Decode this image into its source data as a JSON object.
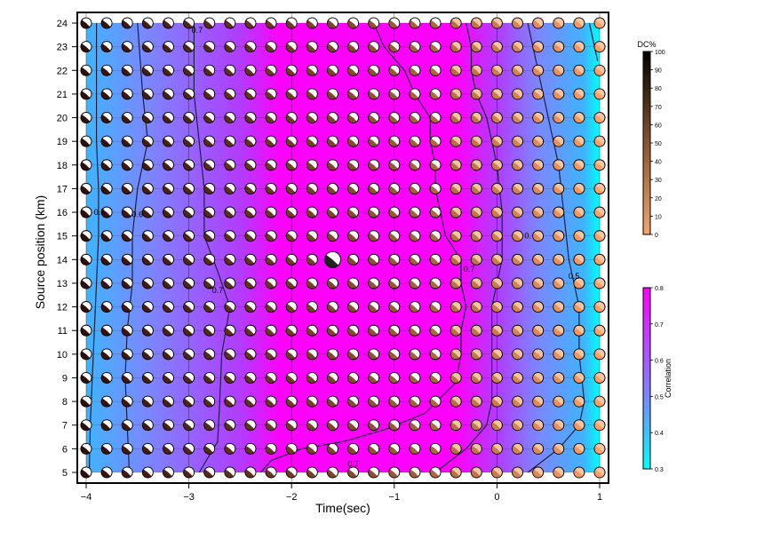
{
  "chart_data": {
    "type": "heatmap",
    "xlabel": "Time(sec)",
    "ylabel": "Source position (km)",
    "xlim": [
      -4,
      1
    ],
    "ylim": [
      5,
      24
    ],
    "x_ticks": [
      "−4",
      "−3",
      "−2",
      "−1",
      "0",
      "1"
    ],
    "y_ticks": [
      "5",
      "6",
      "7",
      "8",
      "9",
      "10",
      "11",
      "12",
      "13",
      "14",
      "15",
      "16",
      "17",
      "18",
      "19",
      "20",
      "21",
      "22",
      "23",
      "24"
    ],
    "grid": true,
    "time_step": 0.2,
    "position_step": 1,
    "x": [
      -4.0,
      -3.8,
      -3.6,
      -3.4,
      -3.2,
      -3.0,
      -2.8,
      -2.6,
      -2.4,
      -2.2,
      -2.0,
      -1.8,
      -1.6,
      -1.4,
      -1.2,
      -1.0,
      -0.8,
      -0.6,
      -0.4,
      -0.2,
      0.0,
      0.2,
      0.4,
      0.6,
      0.8,
      1.0
    ],
    "y": [
      5,
      6,
      7,
      8,
      9,
      10,
      11,
      12,
      13,
      14,
      15,
      16,
      17,
      18,
      19,
      20,
      21,
      22,
      23,
      24
    ],
    "contours": [
      {
        "level": "0.5",
        "points": [
          [
            -3.97,
            5
          ],
          [
            -3.96,
            7
          ],
          [
            -3.94,
            9
          ],
          [
            -3.92,
            11
          ],
          [
            -3.9,
            13
          ],
          [
            -3.88,
            15
          ],
          [
            -3.88,
            17
          ],
          [
            -3.9,
            19
          ],
          [
            -3.9,
            21
          ],
          [
            -3.9,
            24
          ]
        ]
      },
      {
        "level": "0.6",
        "points": [
          [
            -3.58,
            5
          ],
          [
            -3.6,
            7
          ],
          [
            -3.62,
            9
          ],
          [
            -3.6,
            11
          ],
          [
            -3.55,
            13
          ],
          [
            -3.55,
            15
          ],
          [
            -3.5,
            17
          ],
          [
            -3.4,
            19
          ],
          [
            -3.45,
            21
          ],
          [
            -3.5,
            24
          ]
        ]
      },
      {
        "level": "0.7",
        "points": [
          [
            -2.9,
            5
          ],
          [
            -2.72,
            6.3
          ],
          [
            -2.7,
            8
          ],
          [
            -2.68,
            10
          ],
          [
            -2.6,
            12
          ],
          [
            -2.72,
            13.5
          ],
          [
            -2.85,
            15
          ],
          [
            -2.85,
            17
          ],
          [
            -2.9,
            19
          ],
          [
            -2.95,
            21
          ],
          [
            -2.95,
            24
          ]
        ]
      },
      {
        "level": "0.7",
        "points": [
          [
            -2.3,
            5
          ],
          [
            -2.2,
            5.5
          ],
          [
            -1.9,
            6
          ],
          [
            -1.5,
            6.3
          ],
          [
            -1.1,
            6.8
          ],
          [
            -0.7,
            7.5
          ],
          [
            -0.4,
            8.8
          ],
          [
            -0.35,
            10
          ],
          [
            -0.35,
            11
          ],
          [
            -0.3,
            12
          ],
          [
            -0.35,
            13
          ],
          [
            -0.35,
            14
          ],
          [
            -0.5,
            15
          ],
          [
            -0.55,
            16
          ],
          [
            -0.6,
            17
          ],
          [
            -0.6,
            18
          ],
          [
            -0.65,
            19
          ],
          [
            -0.65,
            20
          ],
          [
            -0.8,
            21
          ],
          [
            -0.9,
            22
          ],
          [
            -1.1,
            23
          ],
          [
            -1.2,
            24
          ]
        ]
      },
      {
        "level": "0.6",
        "points": [
          [
            -0.6,
            5
          ],
          [
            -0.3,
            6
          ],
          [
            -0.1,
            7
          ],
          [
            -0.05,
            8
          ],
          [
            -0.05,
            10
          ],
          [
            -0.05,
            12
          ],
          [
            0.05,
            14
          ],
          [
            0.05,
            16
          ],
          [
            0.0,
            18
          ],
          [
            -0.1,
            20
          ],
          [
            -0.2,
            21
          ],
          [
            -0.25,
            22
          ],
          [
            -0.25,
            23
          ],
          [
            -0.3,
            24
          ]
        ]
      },
      {
        "level": "0.5",
        "points": [
          [
            0.3,
            5
          ],
          [
            0.6,
            6
          ],
          [
            0.8,
            7
          ],
          [
            0.85,
            8
          ],
          [
            0.8,
            10
          ],
          [
            0.8,
            12
          ],
          [
            0.75,
            13
          ],
          [
            0.7,
            14
          ],
          [
            0.65,
            16
          ],
          [
            0.6,
            18
          ],
          [
            0.55,
            19
          ],
          [
            0.45,
            21
          ],
          [
            0.4,
            22
          ],
          [
            0.35,
            23
          ],
          [
            0.3,
            24
          ]
        ]
      },
      {
        "level": "0.4",
        "points": [
          [
            0.9,
            24
          ],
          [
            0.95,
            23
          ],
          [
            0.98,
            22.4
          ]
        ]
      }
    ],
    "contour_labels": [
      {
        "text": "0.5",
        "x": -3.87,
        "y": 16
      },
      {
        "text": "0.6",
        "x": -3.5,
        "y": 15.9
      },
      {
        "text": "0.7",
        "x": -2.92,
        "y": 23.7
      },
      {
        "text": "0.7",
        "x": -2.72,
        "y": 12.7
      },
      {
        "text": "0.7",
        "x": -0.27,
        "y": 13.6
      },
      {
        "text": "0.7",
        "x": -1.4,
        "y": 5.35
      },
      {
        "text": "0.",
        "x": 0.3,
        "y": 15
      },
      {
        "text": "0.5",
        "x": 0.75,
        "y": 13.3
      }
    ],
    "best_solution": {
      "time": -1.6,
      "position": 14
    },
    "colorbars": [
      {
        "title": "DC%",
        "min": 0,
        "max": 100,
        "ticks": [
          "0",
          "10",
          "20",
          "30",
          "40",
          "50",
          "60",
          "70",
          "80",
          "90",
          "100"
        ],
        "colors": [
          "#f2a66e",
          "#000000"
        ]
      },
      {
        "title": "Correlation",
        "min": 0.3,
        "max": 0.8,
        "ticks": [
          "0.3",
          "0.4",
          "0.5",
          "0.6",
          "0.7",
          "0.8"
        ],
        "colors": [
          "#00ffff",
          "#ff00ff"
        ]
      }
    ],
    "correlation_colors": {
      "low": "#00ffff",
      "mid": "#7b87ff",
      "high": "#ff00ff"
    }
  }
}
